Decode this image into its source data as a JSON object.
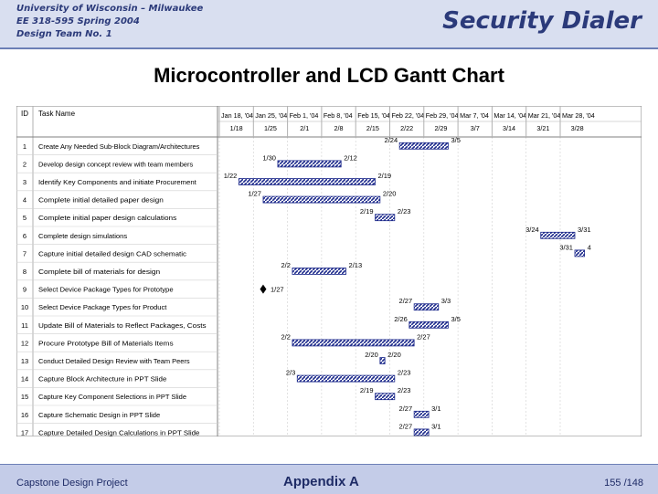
{
  "header": {
    "line1": "University of Wisconsin – Milwaukee",
    "line2": "EE 318-595 Spring 2004",
    "line3": "Design Team No. 1",
    "app_title": "Security Dialer"
  },
  "slide_title": "Microcontroller and LCD Gantt Chart",
  "gantt": {
    "id_header": "ID",
    "task_header": "Task Name",
    "weeks": [
      {
        "top": "Jan 18, '04",
        "bottom": "1/18"
      },
      {
        "top": "Jan 25, '04",
        "bottom": "1/25"
      },
      {
        "top": "Feb 1, '04",
        "bottom": "2/1"
      },
      {
        "top": "Feb 8, '04",
        "bottom": "2/8"
      },
      {
        "top": "Feb 15, '04",
        "bottom": "2/15"
      },
      {
        "top": "Feb 22, '04",
        "bottom": "2/22"
      },
      {
        "top": "Feb 29, '04",
        "bottom": "2/29"
      },
      {
        "top": "Mar 7, '04",
        "bottom": "3/7"
      },
      {
        "top": "Mar 14, '04",
        "bottom": "3/14"
      },
      {
        "top": "Mar 21, '04",
        "bottom": "3/21"
      },
      {
        "top": "Mar 28, '04",
        "bottom": "3/28"
      }
    ],
    "tasks": [
      {
        "id": "1",
        "name": "Create Any Needed Sub-Block Diagram/Architectures",
        "start_label": "2/24",
        "end_label": "3/5",
        "start": 37,
        "end": 47
      },
      {
        "id": "2",
        "name": "Develop design concept review with team members",
        "start_label": "1/30",
        "end_label": "2/12",
        "start": 12,
        "end": 25
      },
      {
        "id": "3",
        "name": "Identify Key Components and initiate Procurement",
        "start_label": "1/22",
        "end_label": "2/19",
        "start": 4,
        "end": 32
      },
      {
        "id": "4",
        "name": "Complete initial detailed paper design",
        "start_label": "1/27",
        "end_label": "2/20",
        "start": 9,
        "end": 33
      },
      {
        "id": "5",
        "name": "Complete initial paper design calculations",
        "start_label": "2/19",
        "end_label": "2/23",
        "start": 32,
        "end": 36
      },
      {
        "id": "6",
        "name": "Complete design simulations",
        "start_label": "3/24",
        "end_label": "3/31",
        "start": 66,
        "end": 73
      },
      {
        "id": "7",
        "name": "Capture initial detailed design CAD schematic",
        "start_label": "3/31",
        "end_label": "4",
        "start": 73,
        "end": 75
      },
      {
        "id": "8",
        "name": "Complete bill of materials for design",
        "start_label": "2/2",
        "end_label": "2/13",
        "start": 15,
        "end": 26
      },
      {
        "id": "9",
        "name": "Select Device Package Types for Prototype",
        "start_label": "",
        "end_label": "1/27",
        "milestone": 9
      },
      {
        "id": "10",
        "name": "Select Device Package Types for Product",
        "start_label": "2/27",
        "end_label": "3/3",
        "start": 40,
        "end": 45
      },
      {
        "id": "11",
        "name": "Update Bill of Materials to Reflect Packages, Costs",
        "start_label": "2/26",
        "end_label": "3/5",
        "start": 39,
        "end": 47
      },
      {
        "id": "12",
        "name": "Procure Prototype Bill of Materials Items",
        "start_label": "2/2",
        "end_label": "2/27",
        "start": 15,
        "end": 40
      },
      {
        "id": "13",
        "name": "Conduct Detailed Design Review with Team Peers",
        "start_label": "2/20",
        "end_label": "2/20",
        "start": 33,
        "end": 34
      },
      {
        "id": "14",
        "name": "Capture Block Architecture in PPT Slide",
        "start_label": "2/3",
        "end_label": "2/23",
        "start": 16,
        "end": 36
      },
      {
        "id": "15",
        "name": "Capture Key Component Selections in PPT Slide",
        "start_label": "2/19",
        "end_label": "2/23",
        "start": 32,
        "end": 36
      },
      {
        "id": "16",
        "name": "Capture Schematic Design in PPT Slide",
        "start_label": "2/27",
        "end_label": "3/1",
        "start": 40,
        "end": 43
      },
      {
        "id": "17",
        "name": "Capture Detailed Design Calculations in PPT Slide",
        "start_label": "2/27",
        "end_label": "3/1",
        "start": 40,
        "end": 43
      }
    ]
  },
  "footer": {
    "left": "Capstone Design Project",
    "middle": "Appendix A",
    "right": "155 /148"
  }
}
